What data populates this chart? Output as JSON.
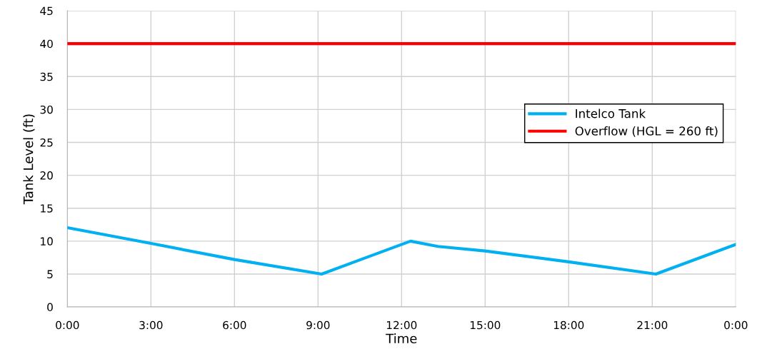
{
  "chart_data": {
    "type": "line",
    "xlabel": "Time",
    "ylabel": "Tank Level (ft)",
    "series": [
      {
        "name": "Intelco Tank",
        "color": "#00b0f0",
        "x": [
          0,
          3,
          6,
          9.13,
          12.32,
          13.3,
          15,
          18,
          21.13,
          24
        ],
        "values": [
          12.05,
          9.65,
          7.2,
          5.0,
          10.0,
          9.2,
          8.5,
          6.85,
          5.0,
          9.5
        ]
      },
      {
        "name": "Overflow (HGL = 260 ft)",
        "color": "#ff0000",
        "x": [
          0,
          24
        ],
        "values": [
          40,
          40
        ]
      }
    ],
    "xlim": [
      0,
      24
    ],
    "xticks": [
      {
        "value": 0,
        "label": "0:00"
      },
      {
        "value": 3,
        "label": "3:00"
      },
      {
        "value": 6,
        "label": "6:00"
      },
      {
        "value": 9,
        "label": "9:00"
      },
      {
        "value": 12,
        "label": "12:00"
      },
      {
        "value": 15,
        "label": "15:00"
      },
      {
        "value": 18,
        "label": "18:00"
      },
      {
        "value": 21,
        "label": "21:00"
      },
      {
        "value": 24,
        "label": "0:00"
      }
    ],
    "ylim": [
      0,
      45
    ],
    "yticks": [
      0,
      5,
      10,
      15,
      20,
      25,
      30,
      35,
      40,
      45
    ],
    "grid": true,
    "legend": "right",
    "marker": "none",
    "line_style": "solid"
  }
}
